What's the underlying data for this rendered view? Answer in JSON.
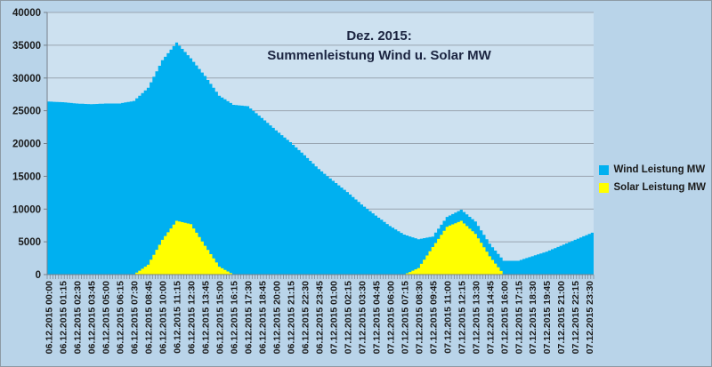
{
  "chart_data": {
    "type": "area",
    "stacked": true,
    "title": "Dez. 2015: Summenleistung Wind u. Solar MW",
    "title_lines": [
      "Dez. 2015:",
      "Summenleistung Wind u. Solar MW"
    ],
    "grid": "horizontal",
    "legend_position": "right",
    "ylim": [
      0,
      40000
    ],
    "y_ticks": [
      0,
      5000,
      10000,
      15000,
      20000,
      25000,
      30000,
      35000,
      40000
    ],
    "x_step_minutes": 15,
    "x_label_interval_minutes": 75,
    "x_tick_labels": [
      "06.12.2015 00:00",
      "06.12.2015 01:15",
      "06.12.2015 02:30",
      "06.12.2015 03:45",
      "06.12.2015 05:00",
      "06.12.2015 06:15",
      "06.12.2015 07:30",
      "06.12.2015 08:45",
      "06.12.2015 10:00",
      "06.12.2015 11:15",
      "06.12.2015 12:30",
      "06.12.2015 13:45",
      "06.12.2015 15:00",
      "06.12.2015 16:15",
      "06.12.2015 17:30",
      "06.12.2015 18:45",
      "06.12.2015 20:00",
      "06.12.2015 21:15",
      "06.12.2015 22:30",
      "06.12.2015 23:45",
      "07.12.2015 01:00",
      "07.12.2015 02:15",
      "07.12.2015 03:30",
      "07.12.2015 04:45",
      "07.12.2015 06:00",
      "07.12.2015 07:15",
      "07.12.2015 08:30",
      "07.12.2015 09:45",
      "07.12.2015 11:00",
      "07.12.2015 12:15",
      "07.12.2015 13:30",
      "07.12.2015 14:45",
      "07.12.2015 16:00",
      "07.12.2015 17:15",
      "07.12.2015 18:30",
      "07.12.2015 19:45",
      "07.12.2015 21:00",
      "07.12.2015 22:15",
      "07.12.2015 23:30"
    ],
    "series": [
      {
        "name": "Wind Leistung MW",
        "color": "#00b0f0",
        "values": [
          26400,
          26300,
          26100,
          26000,
          26100,
          26100,
          26500,
          27000,
          27400,
          27200,
          25300,
          25900,
          26100,
          25900,
          25700,
          23900,
          22000,
          20200,
          18200,
          16100,
          14300,
          12600,
          10700,
          9000,
          7400,
          6100,
          4400,
          1600,
          1500,
          1700,
          1900,
          1900,
          2100,
          2100,
          2800,
          3500,
          4400,
          5300,
          6200
        ]
      },
      {
        "name": "Solar Leistung MW",
        "color": "#ffff00",
        "values": [
          0,
          0,
          0,
          0,
          0,
          0,
          0,
          1500,
          5300,
          8200,
          7700,
          4400,
          1200,
          0,
          0,
          0,
          0,
          0,
          0,
          0,
          0,
          0,
          0,
          0,
          0,
          0,
          1000,
          4200,
          7300,
          8200,
          6200,
          2800,
          0,
          0,
          0,
          0,
          0,
          0,
          0
        ]
      }
    ]
  },
  "colors": {
    "outer_bg": "#b9d4e9",
    "plot_bg": "#cde1f0",
    "gridline": "#99a5b1",
    "axis": "#76808a",
    "tick_text": "#1a1a1a",
    "title_text": "#1b2440",
    "border": "#8d9aa5"
  }
}
